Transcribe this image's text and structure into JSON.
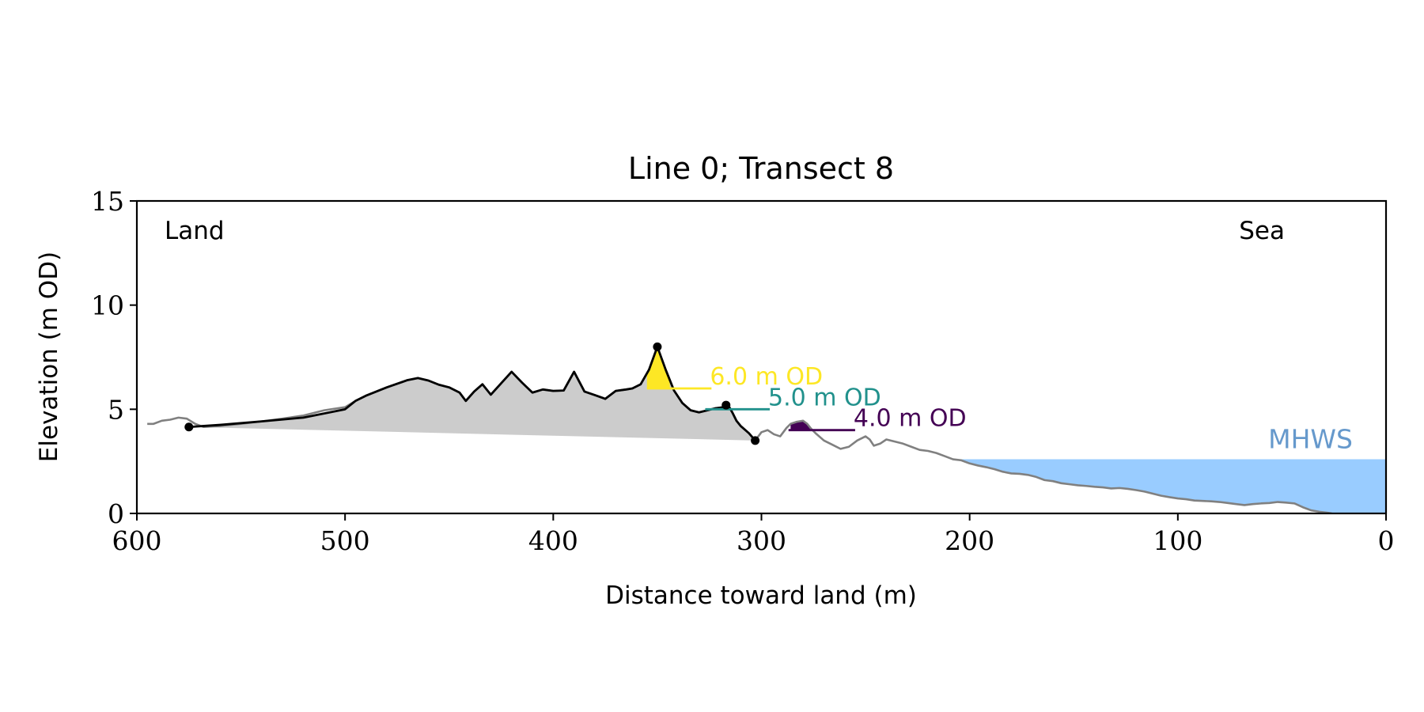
{
  "chart_data": {
    "type": "line",
    "title": "Line 0; Transect 8",
    "xlabel": "Distance toward land (m)",
    "ylabel": "Elevation (m OD)",
    "xlim": [
      600,
      0
    ],
    "ylim": [
      0,
      15
    ],
    "x_ticks": [
      "600",
      "500",
      "400",
      "300",
      "200",
      "100",
      "0"
    ],
    "y_ticks": [
      "0",
      "5",
      "10",
      "15"
    ],
    "grid": false,
    "corner_labels": {
      "left": "Land",
      "right": "Sea"
    },
    "mhws": {
      "label": "MHWS",
      "elevation": 2.6,
      "color": "#99ccff",
      "label_color": "#6699cc"
    },
    "colors": {
      "profile": "#000000",
      "full_profile": "#808080",
      "dune_area": "#cccccc"
    },
    "full_profile": {
      "x": [
        595,
        592,
        588,
        584,
        580,
        576,
        572,
        568,
        560,
        550,
        540,
        530,
        520,
        510,
        500,
        495,
        490,
        480,
        470,
        465,
        460,
        455,
        450,
        445,
        442,
        438,
        434,
        430,
        425,
        420,
        415,
        410,
        405,
        400,
        395,
        390,
        385,
        380,
        375,
        370,
        365,
        362,
        358,
        354,
        350,
        346,
        342,
        338,
        334,
        330,
        326,
        322,
        318,
        316,
        314,
        312,
        310,
        306,
        303,
        300,
        297,
        294,
        291,
        288,
        286,
        283,
        280,
        278,
        276,
        274,
        270,
        266,
        262,
        258,
        254,
        250,
        248,
        246,
        243,
        240,
        236,
        232,
        228,
        224,
        220,
        216,
        212,
        208,
        204,
        200,
        196,
        192,
        188,
        184,
        180,
        176,
        172,
        168,
        164,
        160,
        156,
        152,
        148,
        144,
        140,
        136,
        132,
        128,
        124,
        120,
        116,
        112,
        108,
        104,
        100,
        96,
        92,
        88,
        84,
        80,
        76,
        72,
        68,
        64,
        60,
        56,
        52,
        48,
        44,
        40,
        36,
        32,
        28,
        26
      ],
      "y": [
        4.3,
        4.3,
        4.45,
        4.5,
        4.6,
        4.55,
        4.3,
        4.15,
        4.2,
        4.3,
        4.42,
        4.55,
        4.7,
        4.95,
        5.1,
        5.4,
        5.65,
        6.05,
        6.4,
        6.5,
        6.38,
        6.18,
        6.05,
        5.8,
        5.4,
        5.85,
        6.2,
        5.7,
        6.25,
        6.8,
        6.28,
        5.8,
        5.95,
        5.88,
        5.9,
        6.8,
        5.85,
        5.68,
        5.5,
        5.88,
        5.95,
        6.0,
        6.2,
        6.9,
        8.0,
        6.9,
        5.9,
        5.3,
        4.95,
        4.85,
        4.95,
        5.05,
        5.1,
        5.2,
        4.85,
        4.45,
        4.2,
        3.85,
        3.5,
        3.9,
        4.0,
        3.8,
        3.7,
        4.1,
        4.3,
        4.4,
        4.45,
        4.3,
        4.05,
        3.85,
        3.5,
        3.3,
        3.1,
        3.2,
        3.5,
        3.7,
        3.55,
        3.25,
        3.35,
        3.55,
        3.45,
        3.35,
        3.2,
        3.05,
        3.0,
        2.9,
        2.75,
        2.6,
        2.55,
        2.4,
        2.3,
        2.22,
        2.12,
        2.0,
        1.92,
        1.9,
        1.85,
        1.75,
        1.6,
        1.55,
        1.45,
        1.4,
        1.35,
        1.32,
        1.28,
        1.25,
        1.2,
        1.22,
        1.18,
        1.12,
        1.05,
        0.95,
        0.85,
        0.78,
        0.72,
        0.68,
        0.62,
        0.6,
        0.58,
        0.55,
        0.5,
        0.45,
        0.4,
        0.45,
        0.48,
        0.5,
        0.55,
        0.52,
        0.48,
        0.3,
        0.15,
        0.08,
        0.03,
        0.0
      ]
    },
    "dune_profile": {
      "x": [
        575,
        560,
        540,
        520,
        500,
        495,
        490,
        480,
        470,
        465,
        460,
        455,
        450,
        445,
        442,
        438,
        434,
        430,
        425,
        420,
        415,
        410,
        405,
        400,
        395,
        390,
        385,
        380,
        375,
        370,
        365,
        362,
        358,
        354,
        350,
        346,
        342,
        338,
        334,
        330,
        326,
        322,
        318,
        316,
        314,
        312,
        310,
        306,
        303
      ],
      "y": [
        4.15,
        4.25,
        4.42,
        4.6,
        5.0,
        5.4,
        5.65,
        6.05,
        6.4,
        6.5,
        6.38,
        6.18,
        6.05,
        5.8,
        5.4,
        5.85,
        6.2,
        5.7,
        6.25,
        6.8,
        6.28,
        5.8,
        5.95,
        5.88,
        5.9,
        6.8,
        5.85,
        5.68,
        5.5,
        5.88,
        5.95,
        6.0,
        6.2,
        6.9,
        8.0,
        6.9,
        5.9,
        5.3,
        4.95,
        4.85,
        4.95,
        5.05,
        5.1,
        5.2,
        4.85,
        4.45,
        4.2,
        3.85,
        3.5
      ]
    },
    "dune_area_base": [
      [
        575,
        4.15
      ],
      [
        303,
        3.5
      ]
    ],
    "key_points": [
      {
        "name": "landward-limit",
        "x": 575,
        "y": 4.15
      },
      {
        "name": "crest",
        "x": 350,
        "y": 8.0
      },
      {
        "name": "toe",
        "x": 317,
        "y": 5.2
      },
      {
        "name": "seaward-limit",
        "x": 303,
        "y": 3.5
      }
    ],
    "levels": [
      {
        "label": "6.0 m OD",
        "elevation": 6.0,
        "color": "#fde725",
        "x_start": 355,
        "x_end": 324,
        "fill_x": [
          355,
          344
        ]
      },
      {
        "label": "5.0 m OD",
        "elevation": 5.0,
        "color": "#21918c",
        "x_start": 327,
        "x_end": 296,
        "fill_x": [
          327,
          325
        ]
      },
      {
        "label": "4.0 m OD",
        "elevation": 4.0,
        "color": "#440154",
        "x_start": 287,
        "x_end": 255,
        "fill_x": [
          286,
          276
        ]
      }
    ]
  }
}
